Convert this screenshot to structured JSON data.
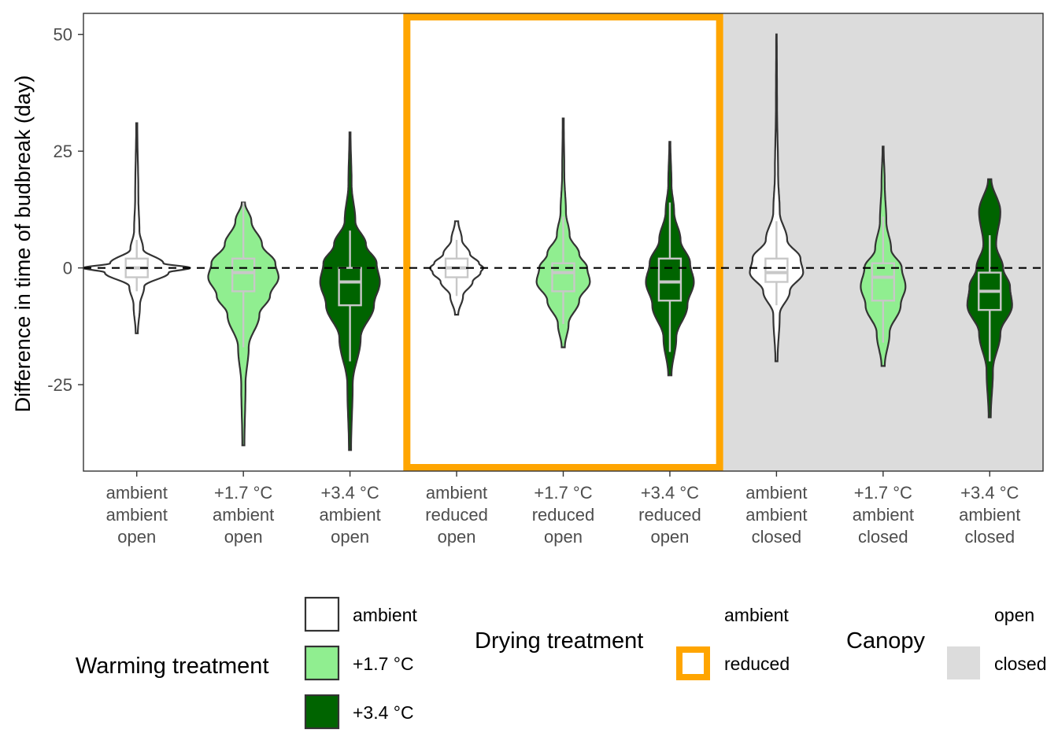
{
  "chart_data": {
    "type": "violin",
    "ylabel": "Difference in time of budbreak (day)",
    "xlabel": "",
    "ylim": [
      -43.5,
      54.5
    ],
    "yticks": [
      -25,
      0,
      25,
      50
    ],
    "yticklabels": [
      "-25",
      "0",
      "25",
      "50"
    ],
    "reference_line": {
      "y": 0,
      "style": "dashed"
    },
    "groups": [
      {
        "warming": "ambient",
        "drying": "ambient",
        "canopy": "open",
        "labels": [
          "ambient",
          "ambient",
          "open"
        ],
        "min": -14,
        "q1": -2,
        "median": 0,
        "q3": 2,
        "max": 31,
        "whisker_low": -5,
        "whisker_high": 6,
        "violin_width": [
          [
            -14,
            0.02
          ],
          [
            -8,
            0.06
          ],
          [
            -4,
            0.14
          ],
          [
            -1,
            0.6
          ],
          [
            0,
            1.0
          ],
          [
            1,
            0.5
          ],
          [
            4,
            0.12
          ],
          [
            8,
            0.05
          ],
          [
            15,
            0.03
          ],
          [
            31,
            0.01
          ]
        ]
      },
      {
        "warming": "+1.7 °C",
        "drying": "ambient",
        "canopy": "open",
        "labels": [
          "+1.7 °C",
          "ambient",
          "open"
        ],
        "min": -38,
        "q1": -5,
        "median": -1,
        "q3": 2,
        "max": 14,
        "whisker_low": -17,
        "whisker_high": 14,
        "violin_width": [
          [
            -38,
            0.02
          ],
          [
            -25,
            0.04
          ],
          [
            -17,
            0.1
          ],
          [
            -10,
            0.3
          ],
          [
            -6,
            0.5
          ],
          [
            -2,
            0.66
          ],
          [
            1,
            0.6
          ],
          [
            5,
            0.35
          ],
          [
            10,
            0.15
          ],
          [
            14,
            0.03
          ]
        ]
      },
      {
        "warming": "+3.4 °C",
        "drying": "ambient",
        "canopy": "open",
        "labels": [
          "+3.4 °C",
          "ambient",
          "open"
        ],
        "min": -39,
        "q1": -8,
        "median": -3,
        "q3": 0,
        "max": 29,
        "whisker_low": -20,
        "whisker_high": 8,
        "violin_width": [
          [
            -39,
            0.02
          ],
          [
            -25,
            0.05
          ],
          [
            -15,
            0.2
          ],
          [
            -8,
            0.45
          ],
          [
            -3,
            0.56
          ],
          [
            1,
            0.5
          ],
          [
            5,
            0.3
          ],
          [
            10,
            0.1
          ],
          [
            18,
            0.03
          ],
          [
            29,
            0.01
          ]
        ]
      },
      {
        "warming": "ambient",
        "drying": "reduced",
        "canopy": "open",
        "labels": [
          "ambient",
          "reduced",
          "open"
        ],
        "min": -10,
        "q1": -2,
        "median": 0,
        "q3": 2,
        "max": 10,
        "whisker_low": -6,
        "whisker_high": 6,
        "violin_width": [
          [
            -10,
            0.03
          ],
          [
            -6,
            0.12
          ],
          [
            -3,
            0.3
          ],
          [
            -1,
            0.45
          ],
          [
            0,
            0.5
          ],
          [
            1,
            0.42
          ],
          [
            3,
            0.25
          ],
          [
            6,
            0.1
          ],
          [
            10,
            0.03
          ]
        ]
      },
      {
        "warming": "+1.7 °C",
        "drying": "reduced",
        "canopy": "open",
        "labels": [
          "+1.7 °C",
          "reduced",
          "open"
        ],
        "min": -17,
        "q1": -5,
        "median": -1,
        "q3": 1,
        "max": 32,
        "whisker_low": -12,
        "whisker_high": 11,
        "violin_width": [
          [
            -17,
            0.03
          ],
          [
            -12,
            0.1
          ],
          [
            -7,
            0.3
          ],
          [
            -3,
            0.5
          ],
          [
            0,
            0.45
          ],
          [
            3,
            0.3
          ],
          [
            7,
            0.12
          ],
          [
            12,
            0.05
          ],
          [
            20,
            0.02
          ],
          [
            32,
            0.01
          ]
        ]
      },
      {
        "warming": "+3.4 °C",
        "drying": "reduced",
        "canopy": "open",
        "labels": [
          "+3.4 °C",
          "reduced",
          "open"
        ],
        "min": -23,
        "q1": -7,
        "median": -3,
        "q3": 2,
        "max": 27,
        "whisker_low": -18,
        "whisker_high": 14,
        "violin_width": [
          [
            -23,
            0.03
          ],
          [
            -15,
            0.12
          ],
          [
            -8,
            0.33
          ],
          [
            -3,
            0.45
          ],
          [
            1,
            0.38
          ],
          [
            6,
            0.2
          ],
          [
            12,
            0.08
          ],
          [
            18,
            0.03
          ],
          [
            27,
            0.01
          ]
        ]
      },
      {
        "warming": "ambient",
        "drying": "ambient",
        "canopy": "closed",
        "labels": [
          "ambient",
          "ambient",
          "closed"
        ],
        "min": -20,
        "q1": -3,
        "median": -1,
        "q3": 2,
        "max": 50,
        "whisker_low": -8,
        "whisker_high": 10,
        "violin_width": [
          [
            -20,
            0.02
          ],
          [
            -10,
            0.06
          ],
          [
            -5,
            0.25
          ],
          [
            -1,
            0.5
          ],
          [
            2,
            0.45
          ],
          [
            6,
            0.2
          ],
          [
            12,
            0.06
          ],
          [
            20,
            0.03
          ],
          [
            35,
            0.01
          ],
          [
            50,
            0.005
          ]
        ]
      },
      {
        "warming": "+1.7 °C",
        "drying": "ambient",
        "canopy": "closed",
        "labels": [
          "+1.7 °C",
          "ambient",
          "closed"
        ],
        "min": -21,
        "q1": -7,
        "median": -2,
        "q3": 1,
        "max": 26,
        "whisker_low": -16,
        "whisker_high": 11,
        "violin_width": [
          [
            -21,
            0.03
          ],
          [
            -14,
            0.12
          ],
          [
            -8,
            0.33
          ],
          [
            -4,
            0.42
          ],
          [
            0,
            0.35
          ],
          [
            4,
            0.15
          ],
          [
            10,
            0.06
          ],
          [
            18,
            0.03
          ],
          [
            26,
            0.01
          ]
        ]
      },
      {
        "warming": "+3.4 °C",
        "drying": "ambient",
        "canopy": "closed",
        "labels": [
          "+3.4 °C",
          "ambient",
          "closed"
        ],
        "min": -32,
        "q1": -9,
        "median": -5,
        "q3": -1,
        "max": 19,
        "whisker_low": -20,
        "whisker_high": 7,
        "violin_width": [
          [
            -32,
            0.02
          ],
          [
            -22,
            0.06
          ],
          [
            -14,
            0.2
          ],
          [
            -8,
            0.42
          ],
          [
            -4,
            0.38
          ],
          [
            0,
            0.25
          ],
          [
            5,
            0.12
          ],
          [
            12,
            0.2
          ],
          [
            19,
            0.03
          ]
        ]
      }
    ],
    "legend": {
      "warming": {
        "title": "Warming treatment",
        "items": [
          {
            "label": "ambient",
            "fill": "#ffffff"
          },
          {
            "label": "+1.7 °C",
            "fill": "#90ee90"
          },
          {
            "label": "+3.4 °C",
            "fill": "#006400"
          }
        ]
      },
      "drying": {
        "title": "Drying treatment",
        "items": [
          {
            "label": "ambient",
            "stroke": "none"
          },
          {
            "label": "reduced",
            "stroke": "#ffa500"
          }
        ]
      },
      "canopy": {
        "title": "Canopy",
        "items": [
          {
            "label": "open",
            "fill": "none"
          },
          {
            "label": "closed",
            "fill": "#dcdcdc"
          }
        ]
      }
    },
    "colors": {
      "ambient": "#ffffff",
      "warm17": "#90ee90",
      "warm34": "#006400",
      "reduced_outline": "#ffa500",
      "closed_canopy": "#dcdcdc",
      "box": "#c8c8c8"
    },
    "grid": false
  }
}
